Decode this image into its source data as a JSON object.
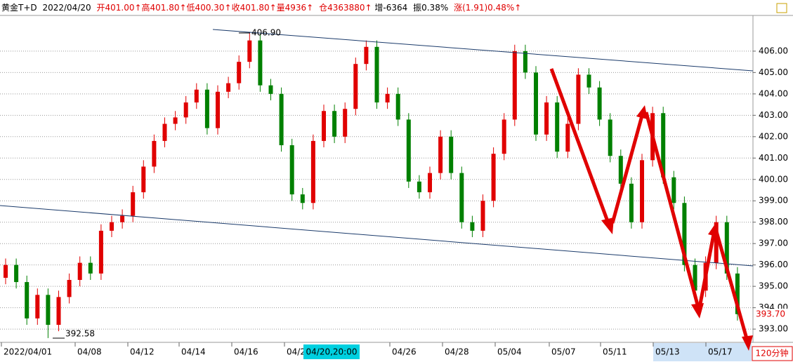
{
  "header": {
    "name": "黄金T+D",
    "date": "2022/04/20",
    "quote": "开401.00↑高401.80↑低400.30↑收401.80↑量4936↑",
    "position": "仓4363880↑",
    "change": "增-6364",
    "amplitude": "振0.38%",
    "rise": "涨(1.91)0.48%↑"
  },
  "chart_data": {
    "type": "candlestick",
    "open": [
      395.4,
      396.0,
      395.2,
      393.5,
      394.6,
      393.2,
      394.5,
      395.3,
      396.1,
      395.6,
      397.6,
      398.0,
      398.3,
      399.4,
      400.6,
      401.8,
      402.6,
      402.9,
      403.6,
      404.2,
      402.4,
      404.1,
      404.5,
      405.5,
      406.5,
      404.4,
      404.0,
      401.6,
      399.3,
      398.9,
      401.8,
      403.2,
      402.0,
      403.3,
      405.4,
      406.2,
      403.6,
      404.0,
      402.8,
      399.9,
      399.4,
      400.3,
      402.0,
      400.3,
      398.0,
      397.6,
      399.0,
      401.2,
      402.8,
      406.0,
      405.0,
      402.1,
      403.6,
      401.3,
      402.6,
      404.9,
      404.3,
      402.8,
      401.1,
      399.8,
      398.0,
      400.9,
      403.1,
      400.1,
      398.9,
      396.0,
      394.8,
      396.1,
      398.0,
      395.6
    ],
    "high": [
      396.3,
      396.3,
      395.5,
      394.9,
      394.9,
      394.8,
      395.6,
      396.4,
      396.4,
      397.9,
      398.3,
      398.6,
      399.7,
      400.9,
      402.1,
      402.9,
      403.2,
      403.9,
      404.5,
      404.5,
      404.4,
      404.8,
      405.8,
      406.9,
      406.8,
      404.7,
      404.3,
      401.9,
      399.6,
      402.1,
      403.5,
      403.5,
      403.6,
      405.7,
      406.5,
      406.5,
      404.3,
      404.3,
      403.1,
      400.2,
      400.6,
      402.3,
      402.3,
      400.6,
      398.3,
      399.3,
      401.5,
      403.1,
      406.3,
      406.3,
      405.3,
      403.9,
      403.9,
      402.9,
      405.2,
      405.2,
      404.6,
      403.1,
      401.4,
      400.1,
      401.2,
      403.4,
      403.4,
      400.4,
      399.2,
      396.3,
      396.4,
      398.3,
      398.3,
      395.9
    ],
    "low": [
      395.1,
      394.9,
      393.2,
      393.2,
      392.58,
      392.9,
      394.2,
      395.0,
      395.3,
      395.3,
      397.3,
      397.7,
      398.0,
      399.1,
      400.3,
      401.5,
      402.3,
      402.6,
      403.3,
      402.1,
      402.1,
      403.8,
      404.2,
      405.2,
      404.1,
      403.7,
      401.3,
      399.0,
      398.6,
      398.6,
      401.5,
      401.7,
      401.7,
      403.0,
      405.1,
      403.3,
      403.3,
      402.5,
      399.6,
      399.1,
      399.1,
      400.0,
      400.0,
      397.7,
      397.3,
      397.3,
      398.7,
      400.9,
      402.5,
      404.7,
      401.8,
      401.8,
      401.0,
      401.0,
      402.3,
      404.0,
      402.5,
      400.8,
      399.5,
      397.7,
      397.7,
      400.6,
      399.8,
      398.6,
      395.7,
      394.5,
      394.5,
      395.8,
      395.3,
      393.4
    ],
    "close": [
      396.0,
      395.2,
      393.5,
      394.6,
      393.2,
      394.5,
      395.3,
      396.1,
      395.6,
      397.6,
      398.0,
      398.3,
      399.4,
      400.6,
      401.8,
      402.6,
      402.9,
      403.6,
      404.2,
      402.4,
      404.1,
      404.5,
      405.5,
      406.5,
      404.4,
      404.0,
      401.6,
      399.3,
      398.9,
      401.8,
      403.2,
      402.0,
      403.3,
      405.4,
      406.2,
      403.6,
      404.0,
      402.8,
      399.9,
      399.4,
      400.3,
      402.0,
      400.3,
      398.0,
      397.6,
      399.0,
      401.2,
      402.8,
      406.0,
      405.0,
      402.1,
      403.6,
      401.3,
      402.6,
      404.9,
      404.3,
      402.8,
      401.1,
      399.8,
      398.0,
      400.9,
      403.1,
      400.1,
      398.9,
      396.0,
      394.8,
      396.1,
      398.0,
      395.6,
      393.7
    ],
    "up_color": "#e00000",
    "down_color": "#008000",
    "ylim": [
      392.38,
      407.67
    ],
    "yticks": [
      {
        "value": 393,
        "label": "393.00"
      },
      {
        "value": 394,
        "label": "394.00"
      },
      {
        "value": 395,
        "label": "395.00"
      },
      {
        "value": 396,
        "label": "396.00"
      },
      {
        "value": 397,
        "label": "397.00"
      },
      {
        "value": 398,
        "label": "398.00"
      },
      {
        "value": 399,
        "label": "399.00"
      },
      {
        "value": 400,
        "label": "400.00"
      },
      {
        "value": 401,
        "label": "401.00"
      },
      {
        "value": 402,
        "label": "402.00"
      },
      {
        "value": 403,
        "label": "403.00"
      },
      {
        "value": 404,
        "label": "404.00"
      },
      {
        "value": 405,
        "label": "405.00"
      },
      {
        "value": 406,
        "label": "406.00"
      }
    ],
    "grid": true,
    "x_labels": [
      "2022/04/01",
      "04/08",
      "04/12",
      "04/14",
      "04/16",
      "04/2",
      "04/26",
      "04/28",
      "05/04",
      "05/07",
      "05/11",
      "05/13",
      "05/17"
    ],
    "crosshair_label": "04/20,20:00",
    "high_label": "406.90",
    "low_label": "392.58",
    "last_price": "393.70",
    "period": "120分钟"
  }
}
